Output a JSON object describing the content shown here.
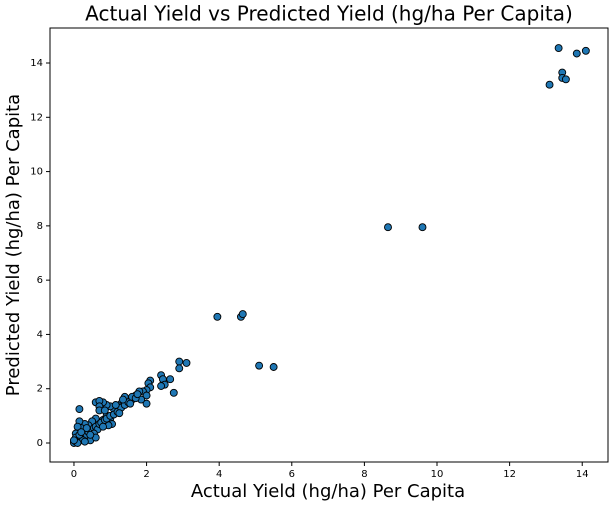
{
  "chart_data": {
    "type": "scatter",
    "title": "Actual Yield vs Predicted Yield (hg/ha Per Capita)",
    "x_label": "Actual Yield (hg/ha) Per Capita",
    "y_label": "Predicted Yield (hg/ha) Per Capita",
    "color": "#1f77b4",
    "xlim": [
      -0.66,
      14.71
    ],
    "ylim": [
      -0.7,
      15.29
    ],
    "xticks": [
      0,
      2,
      4,
      6,
      8,
      10,
      12,
      14
    ],
    "yticks": [
      0,
      2,
      4,
      6,
      8,
      10,
      12,
      14
    ],
    "x": [
      13.35,
      13.85,
      14.1,
      13.45,
      13.45,
      13.55,
      13.1,
      8.65,
      9.6,
      3.95,
      4.6,
      4.65,
      5.1,
      5.5,
      2.9,
      3.1,
      2.9,
      2.75,
      2.65,
      2.4,
      2.45,
      2.5,
      2.4,
      2.1,
      2.05,
      2.1,
      2.0,
      1.9,
      1.8,
      1.7,
      2.0,
      2.0,
      1.85,
      1.6,
      1.5,
      1.4,
      1.3,
      1.25,
      1.2,
      1.1,
      1.0,
      0.9,
      0.8,
      0.6,
      0.7,
      0.7,
      0.7,
      0.9,
      1.0,
      1.05,
      0.95,
      0.8,
      0.6,
      0.5,
      0.4,
      0.3,
      0.2,
      0.15,
      0.1,
      0.15,
      0.05,
      0.05,
      0.0,
      0.0,
      0.1,
      0.2,
      0.3,
      0.35,
      0.4,
      0.45,
      0.5,
      0.55,
      0.6,
      0.65,
      0.7,
      0.75,
      0.8,
      0.85,
      0.9,
      1.0,
      1.1,
      1.2,
      1.3,
      1.4,
      1.5,
      1.6,
      1.7,
      0.25,
      0.15,
      0.55,
      0.35,
      0.6,
      0.45,
      0.2,
      0.05,
      0.1,
      0.0,
      1.15,
      1.35,
      1.55,
      1.75,
      0.3,
      0.85,
      1.25
    ],
    "values": [
      14.55,
      14.35,
      14.45,
      13.65,
      13.45,
      13.4,
      13.2,
      7.95,
      7.95,
      4.65,
      4.65,
      4.75,
      2.85,
      2.8,
      3.0,
      2.95,
      2.75,
      1.85,
      2.35,
      2.5,
      2.35,
      2.15,
      2.1,
      2.3,
      2.2,
      2.05,
      1.95,
      1.9,
      1.9,
      1.75,
      1.75,
      1.45,
      1.6,
      1.6,
      1.55,
      1.7,
      1.45,
      1.35,
      1.3,
      1.25,
      1.35,
      1.4,
      1.5,
      1.5,
      1.55,
      1.35,
      1.2,
      1.0,
      0.9,
      0.7,
      0.65,
      0.85,
      0.9,
      0.8,
      0.65,
      0.7,
      0.55,
      0.8,
      0.6,
      1.25,
      0.35,
      0.2,
      0.05,
      0.0,
      0.1,
      0.15,
      0.2,
      0.3,
      0.4,
      0.1,
      0.45,
      0.55,
      0.6,
      0.5,
      0.7,
      0.75,
      0.6,
      0.85,
      0.9,
      1.0,
      1.05,
      1.15,
      1.3,
      1.4,
      1.5,
      1.7,
      1.65,
      0.1,
      0.3,
      0.35,
      0.55,
      0.2,
      0.3,
      0.4,
      0.05,
      0.0,
      0.1,
      1.4,
      1.6,
      1.45,
      1.8,
      0.05,
      1.2,
      1.1
    ]
  }
}
